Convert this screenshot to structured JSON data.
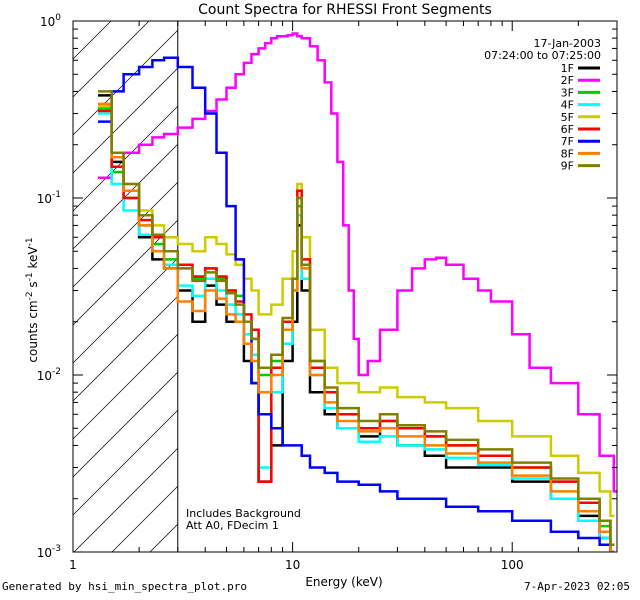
{
  "chart_data": {
    "type": "line",
    "title": "Count Spectra for RHESSI Front Segments",
    "xlabel": "Energy (keV)",
    "ylabel": "counts cm-2 s-1 keV-1",
    "xscale": "log",
    "yscale": "log",
    "xlim": [
      1.0,
      300.0
    ],
    "ylim": [
      0.001,
      1.0
    ],
    "x_ticks": [
      {
        "value": 1,
        "label": "1"
      },
      {
        "value": 10,
        "label": "10"
      },
      {
        "value": 100,
        "label": "100"
      }
    ],
    "y_ticks": [
      {
        "value": 1,
        "base": "10",
        "exp": "0"
      },
      {
        "value": 0.1,
        "base": "10",
        "exp": "-1"
      },
      {
        "value": 0.01,
        "base": "10",
        "exp": "-2"
      },
      {
        "value": 0.001,
        "base": "10",
        "exp": "-3"
      }
    ],
    "date": "17-Jan-2003",
    "time_range": "07:24:00 to 07:25:00",
    "annotation_lines": [
      "Includes Background",
      "Att A0, FDecim 1"
    ],
    "hatched_range_kev": [
      1.0,
      3.0
    ],
    "legend_position": "top-right",
    "series": [
      {
        "name": "1F",
        "color": "#000000",
        "x": [
          1.3,
          1.5,
          1.7,
          2.0,
          2.3,
          2.6,
          3.0,
          3.5,
          4.0,
          4.5,
          5.0,
          5.5,
          6.0,
          6.5,
          7.0,
          8.0,
          9.0,
          10.0,
          10.5,
          11.0,
          12.0,
          14.0,
          16.0,
          20.0,
          25.0,
          30.0,
          40.0,
          50.0,
          70.0,
          100.0,
          150.0,
          200.0,
          250.0,
          280.0
        ],
        "y": [
          0.38,
          0.16,
          0.11,
          0.06,
          0.045,
          0.04,
          0.03,
          0.02,
          0.032,
          0.025,
          0.02,
          0.02,
          0.012,
          0.009,
          0.0025,
          0.004,
          0.012,
          0.02,
          0.07,
          0.03,
          0.008,
          0.006,
          0.005,
          0.0045,
          0.005,
          0.004,
          0.0035,
          0.003,
          0.003,
          0.0025,
          0.002,
          0.0016,
          0.0012,
          0.001
        ]
      },
      {
        "name": "2F",
        "color": "#ff00ff",
        "x": [
          1.3,
          1.5,
          1.7,
          2.0,
          2.3,
          2.6,
          3.0,
          3.5,
          4.0,
          4.5,
          5.0,
          5.5,
          6.0,
          6.5,
          7.0,
          7.5,
          8.0,
          8.5,
          9.0,
          9.5,
          10.0,
          10.5,
          11.0,
          12.0,
          13.0,
          14.0,
          15.0,
          16.0,
          17.0,
          18.0,
          19.0,
          20.0,
          22.0,
          25.0,
          30.0,
          35.0,
          40.0,
          45.0,
          50.0,
          60.0,
          70.0,
          80.0,
          100.0,
          120.0,
          150.0,
          200.0,
          250.0,
          290.0
        ],
        "y": [
          0.13,
          0.15,
          0.18,
          0.2,
          0.22,
          0.23,
          0.25,
          0.28,
          0.31,
          0.36,
          0.42,
          0.5,
          0.58,
          0.65,
          0.7,
          0.75,
          0.8,
          0.82,
          0.82,
          0.83,
          0.85,
          0.82,
          0.8,
          0.72,
          0.6,
          0.45,
          0.3,
          0.16,
          0.07,
          0.03,
          0.016,
          0.01,
          0.012,
          0.018,
          0.03,
          0.04,
          0.045,
          0.046,
          0.042,
          0.035,
          0.03,
          0.026,
          0.017,
          0.011,
          0.009,
          0.006,
          0.0035,
          0.0022
        ]
      },
      {
        "name": "3F",
        "color": "#00cc00",
        "x": [
          1.3,
          1.5,
          1.7,
          2.0,
          2.3,
          2.6,
          3.0,
          3.5,
          4.0,
          4.5,
          5.0,
          5.5,
          6.0,
          6.5,
          7.0,
          8.0,
          9.0,
          10.0,
          10.5,
          11.0,
          12.0,
          14.0,
          16.0,
          20.0,
          25.0,
          30.0,
          40.0,
          50.0,
          70.0,
          100.0,
          150.0,
          200.0,
          250.0,
          280.0
        ],
        "y": [
          0.32,
          0.14,
          0.1,
          0.07,
          0.055,
          0.045,
          0.04,
          0.035,
          0.04,
          0.035,
          0.03,
          0.028,
          0.02,
          0.016,
          0.01,
          0.012,
          0.02,
          0.03,
          0.09,
          0.04,
          0.012,
          0.008,
          0.006,
          0.005,
          0.0055,
          0.005,
          0.0045,
          0.004,
          0.0035,
          0.003,
          0.0025,
          0.002,
          0.0014,
          0.001
        ]
      },
      {
        "name": "4F",
        "color": "#00ffff",
        "x": [
          1.3,
          1.5,
          1.7,
          2.0,
          2.3,
          2.6,
          3.0,
          3.5,
          4.0,
          4.5,
          5.0,
          5.5,
          6.0,
          6.5,
          7.0,
          8.0,
          9.0,
          10.0,
          10.5,
          11.0,
          12.0,
          14.0,
          16.0,
          20.0,
          25.0,
          30.0,
          40.0,
          50.0,
          70.0,
          100.0,
          150.0,
          200.0,
          250.0,
          280.0
        ],
        "y": [
          0.3,
          0.12,
          0.085,
          0.062,
          0.05,
          0.042,
          0.032,
          0.028,
          0.035,
          0.03,
          0.025,
          0.022,
          0.017,
          0.013,
          0.003,
          0.008,
          0.015,
          0.03,
          0.08,
          0.035,
          0.01,
          0.0065,
          0.005,
          0.0042,
          0.0045,
          0.004,
          0.0038,
          0.0034,
          0.0031,
          0.0026,
          0.002,
          0.0015,
          0.0012,
          0.001
        ]
      },
      {
        "name": "5F",
        "color": "#cccc00",
        "x": [
          1.3,
          1.5,
          1.7,
          2.0,
          2.3,
          2.6,
          3.0,
          3.5,
          4.0,
          4.5,
          5.0,
          5.5,
          6.0,
          6.5,
          7.0,
          8.0,
          9.0,
          10.0,
          10.5,
          11.0,
          12.0,
          14.0,
          16.0,
          20.0,
          25.0,
          30.0,
          40.0,
          50.0,
          70.0,
          100.0,
          150.0,
          200.0,
          250.0,
          280.0
        ],
        "y": [
          0.33,
          0.15,
          0.12,
          0.085,
          0.07,
          0.06,
          0.055,
          0.05,
          0.06,
          0.055,
          0.048,
          0.042,
          0.035,
          0.03,
          0.022,
          0.025,
          0.035,
          0.05,
          0.12,
          0.06,
          0.018,
          0.011,
          0.009,
          0.008,
          0.0085,
          0.0075,
          0.007,
          0.0065,
          0.0055,
          0.0045,
          0.0035,
          0.0028,
          0.0022,
          0.0016
        ]
      },
      {
        "name": "6F",
        "color": "#ff0000",
        "x": [
          1.3,
          1.5,
          1.7,
          2.0,
          2.3,
          2.6,
          3.0,
          3.5,
          4.0,
          4.5,
          5.0,
          5.5,
          6.0,
          6.5,
          7.0,
          8.0,
          9.0,
          10.0,
          10.5,
          11.0,
          12.0,
          14.0,
          16.0,
          20.0,
          25.0,
          30.0,
          40.0,
          50.0,
          70.0,
          100.0,
          150.0,
          200.0,
          250.0,
          280.0
        ],
        "y": [
          0.31,
          0.15,
          0.1,
          0.075,
          0.06,
          0.05,
          0.042,
          0.036,
          0.04,
          0.036,
          0.03,
          0.026,
          0.022,
          0.018,
          0.0025,
          0.011,
          0.02,
          0.035,
          0.11,
          0.045,
          0.011,
          0.008,
          0.006,
          0.005,
          0.0055,
          0.005,
          0.0045,
          0.004,
          0.0035,
          0.003,
          0.0025,
          0.0019,
          0.0015,
          0.0011
        ]
      },
      {
        "name": "7F",
        "color": "#0000ff",
        "x": [
          1.3,
          1.5,
          1.7,
          2.0,
          2.3,
          2.6,
          3.0,
          3.5,
          4.0,
          4.5,
          5.0,
          5.5,
          6.0,
          6.5,
          7.0,
          8.0,
          9.0,
          10.0,
          10.5,
          11.0,
          12.0,
          14.0,
          16.0,
          20.0,
          25.0,
          30.0,
          40.0,
          50.0,
          70.0,
          100.0,
          150.0,
          200.0,
          250.0,
          280.0
        ],
        "y": [
          0.27,
          0.4,
          0.5,
          0.55,
          0.6,
          0.62,
          0.55,
          0.42,
          0.3,
          0.18,
          0.09,
          0.045,
          0.02,
          0.009,
          0.006,
          0.005,
          0.004,
          0.004,
          0.004,
          0.0035,
          0.003,
          0.0028,
          0.0025,
          0.0024,
          0.0022,
          0.002,
          0.002,
          0.0018,
          0.0017,
          0.0015,
          0.0013,
          0.0012,
          0.0011,
          0.001
        ]
      },
      {
        "name": "8F",
        "color": "#ff8000",
        "x": [
          1.3,
          1.5,
          1.7,
          2.0,
          2.3,
          2.6,
          3.0,
          3.5,
          4.0,
          4.5,
          5.0,
          5.5,
          6.0,
          6.5,
          7.0,
          8.0,
          9.0,
          10.0,
          10.5,
          11.0,
          12.0,
          14.0,
          16.0,
          20.0,
          25.0,
          30.0,
          40.0,
          50.0,
          70.0,
          100.0,
          150.0,
          200.0,
          250.0,
          280.0
        ],
        "y": [
          0.34,
          0.17,
          0.11,
          0.07,
          0.05,
          0.04,
          0.026,
          0.023,
          0.03,
          0.027,
          0.022,
          0.02,
          0.015,
          0.012,
          0.008,
          0.01,
          0.018,
          0.03,
          0.1,
          0.04,
          0.01,
          0.007,
          0.0055,
          0.0048,
          0.005,
          0.0045,
          0.004,
          0.0036,
          0.0032,
          0.0027,
          0.0022,
          0.0017,
          0.0013,
          0.001
        ]
      },
      {
        "name": "9F",
        "color": "#808000",
        "x": [
          1.3,
          1.5,
          1.7,
          2.0,
          2.3,
          2.6,
          3.0,
          3.5,
          4.0,
          4.5,
          5.0,
          5.5,
          6.0,
          6.5,
          7.0,
          8.0,
          9.0,
          10.0,
          10.5,
          11.0,
          12.0,
          14.0,
          16.0,
          20.0,
          25.0,
          30.0,
          40.0,
          50.0,
          70.0,
          100.0,
          150.0,
          200.0,
          250.0,
          280.0
        ],
        "y": [
          0.4,
          0.18,
          0.12,
          0.08,
          0.062,
          0.05,
          0.04,
          0.034,
          0.038,
          0.034,
          0.029,
          0.025,
          0.02,
          0.016,
          0.011,
          0.013,
          0.021,
          0.035,
          0.1,
          0.042,
          0.012,
          0.0085,
          0.0065,
          0.0055,
          0.006,
          0.0052,
          0.0048,
          0.0043,
          0.0038,
          0.0032,
          0.0026,
          0.002,
          0.0015,
          0.0011
        ]
      }
    ]
  },
  "footer": {
    "left": "Generated by hsi_min_spectra_plot.pro",
    "right": "7-Apr-2023 02:05"
  }
}
